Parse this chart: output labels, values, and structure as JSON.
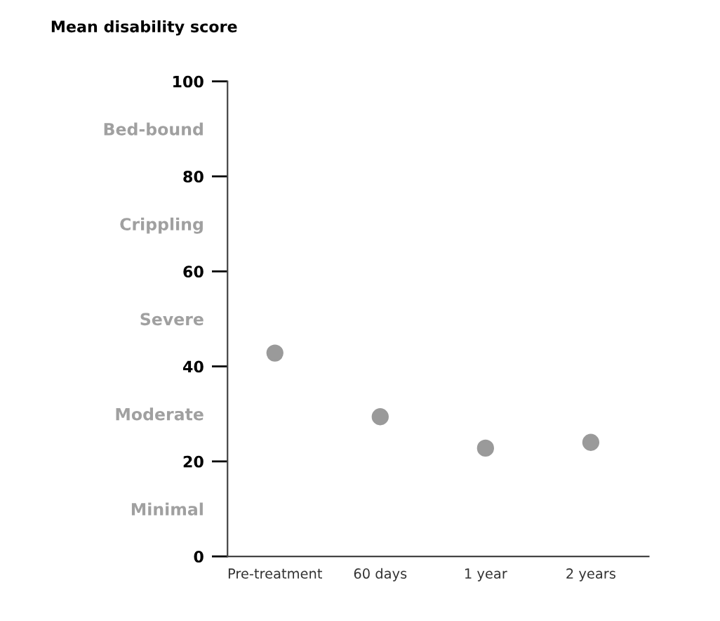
{
  "chart_data": {
    "type": "scatter",
    "ylabel": "Mean disability score",
    "categories": [
      "Pre-treatment",
      "60 days",
      "1 year",
      "2 years"
    ],
    "series": [
      {
        "color": "#9a9a9a",
        "values": [
          42.8,
          29.4,
          22.8,
          24.0
        ]
      }
    ],
    "ylim": [
      0,
      100
    ],
    "yticks": [
      0,
      {
        "value": 10,
        "label": "Minimal"
      },
      20,
      {
        "value": 30,
        "label": "Moderate"
      },
      40,
      {
        "value": 50,
        "label": "Severe"
      },
      60,
      {
        "value": 70,
        "label": "Crippling"
      },
      80,
      {
        "value": 90,
        "label": "Bed-bound"
      },
      100
    ],
    "grid": false,
    "legend": false,
    "marker": "circle"
  }
}
